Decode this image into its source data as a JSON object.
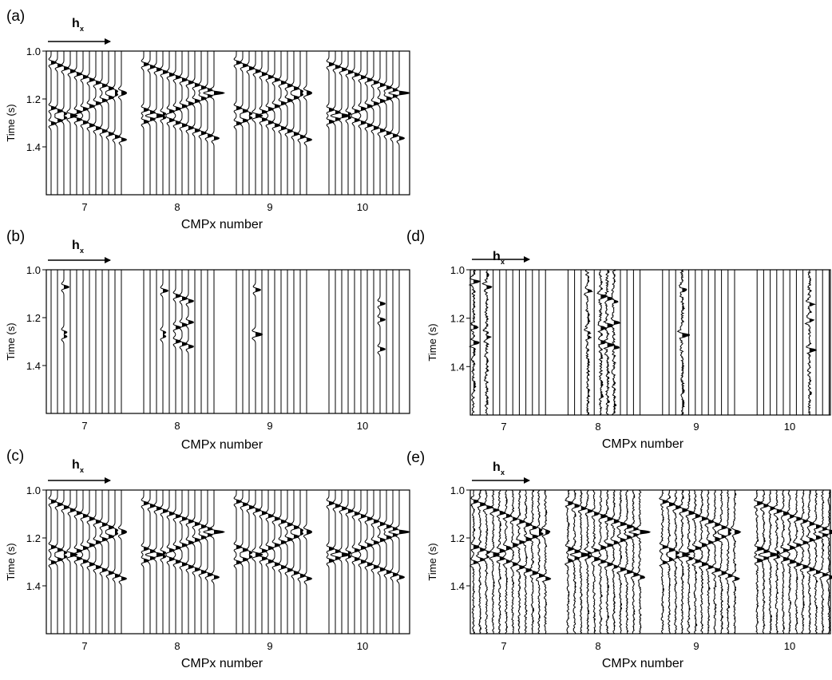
{
  "chart_data": [
    {
      "panel": "(a)",
      "type": "seismic-wiggle",
      "offset_label": "h",
      "offset_subscript": "x",
      "xlabel": "CMPx number",
      "ylabel": "Time (s)",
      "ylim": [
        1.0,
        1.6
      ],
      "yticks": [
        "1.0",
        "1.2",
        "1.4"
      ],
      "cmps": [
        "7",
        "8",
        "9",
        "10"
      ],
      "traces_per_cmp": 12,
      "events": [
        {
          "t0": 1.12,
          "dt": 0.012
        },
        {
          "t0": 1.23,
          "dt": 0.012
        },
        {
          "t0": 1.31,
          "dt": 0.012
        }
      ],
      "live_traces": "all",
      "noise": 0.0,
      "noise_traces": "none"
    },
    {
      "panel": "(b)",
      "type": "seismic-wiggle",
      "offset_label": "h",
      "offset_subscript": "x",
      "xlabel": "CMPx number",
      "ylabel": "Time (s)",
      "ylim": [
        1.0,
        1.6
      ],
      "yticks": [
        "1.0",
        "1.2",
        "1.4"
      ],
      "cmps": [
        "7",
        "8",
        "9",
        "10"
      ],
      "traces_per_cmp": 12,
      "events": [
        {
          "t0": 1.12,
          "dt": 0.012
        },
        {
          "t0": 1.23,
          "dt": 0.012
        },
        {
          "t0": 1.31,
          "dt": 0.012
        }
      ],
      "live_traces": [
        [
          0,
          2
        ],
        [
          1,
          3
        ],
        [
          1,
          5
        ],
        [
          1,
          6
        ],
        [
          1,
          7
        ],
        [
          2,
          3
        ],
        [
          3,
          8
        ]
      ],
      "noise": 0.0,
      "noise_traces": "none"
    },
    {
      "panel": "(c)",
      "type": "seismic-wiggle",
      "offset_label": "h",
      "offset_subscript": "x",
      "xlabel": "CMPx number",
      "ylabel": "Time (s)",
      "ylim": [
        1.0,
        1.6
      ],
      "yticks": [
        "1.0",
        "1.2",
        "1.4"
      ],
      "cmps": [
        "7",
        "8",
        "9",
        "10"
      ],
      "traces_per_cmp": 12,
      "events": [
        {
          "t0": 1.12,
          "dt": 0.012
        },
        {
          "t0": 1.23,
          "dt": 0.012
        },
        {
          "t0": 1.31,
          "dt": 0.012
        }
      ],
      "live_traces": "all",
      "noise": 0.0,
      "noise_traces": "none"
    },
    {
      "panel": "(d)",
      "type": "seismic-wiggle",
      "offset_label": "h",
      "offset_subscript": "x",
      "xlabel": "CMPx number",
      "ylabel": "Time (s)",
      "ylim": [
        1.0,
        1.6
      ],
      "yticks": [
        "1.0",
        "1.2",
        "1.4"
      ],
      "cmps": [
        "7",
        "8",
        "9",
        "10"
      ],
      "traces_per_cmp": 12,
      "events": [
        {
          "t0": 1.12,
          "dt": 0.012
        },
        {
          "t0": 1.23,
          "dt": 0.012
        },
        {
          "t0": 1.31,
          "dt": 0.012
        }
      ],
      "live_traces": [
        [
          0,
          0
        ],
        [
          0,
          2
        ],
        [
          1,
          3
        ],
        [
          1,
          5
        ],
        [
          1,
          6
        ],
        [
          1,
          7
        ],
        [
          2,
          3
        ],
        [
          3,
          8
        ]
      ],
      "noise": 0.35,
      "noise_traces": "live"
    },
    {
      "panel": "(e)",
      "type": "seismic-wiggle",
      "offset_label": "h",
      "offset_subscript": "x",
      "xlabel": "CMPx number",
      "ylabel": "Time (s)",
      "ylim": [
        1.0,
        1.6
      ],
      "yticks": [
        "1.0",
        "1.2",
        "1.4"
      ],
      "cmps": [
        "7",
        "8",
        "9",
        "10"
      ],
      "traces_per_cmp": 12,
      "events": [
        {
          "t0": 1.12,
          "dt": 0.012
        },
        {
          "t0": 1.23,
          "dt": 0.012
        },
        {
          "t0": 1.31,
          "dt": 0.012
        }
      ],
      "live_traces": "all",
      "noise": 0.22,
      "noise_traces": "all"
    }
  ]
}
